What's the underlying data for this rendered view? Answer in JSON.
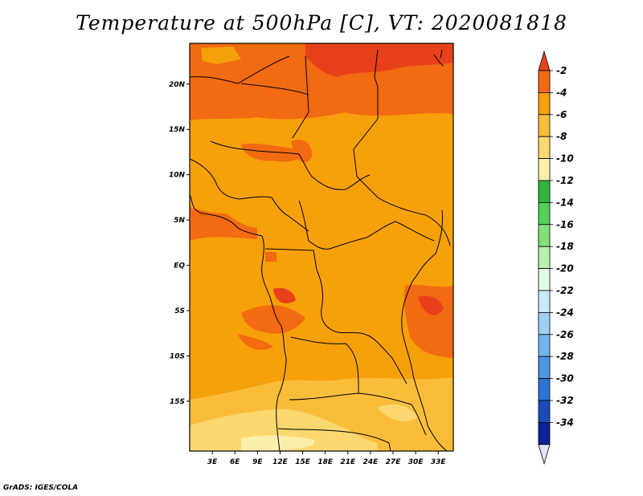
{
  "title": "Temperature at 500hPa [C], VT: 2020081818",
  "credit": "GrADS: IGES/COLA",
  "map": {
    "lat_labels": [
      "20N",
      "15N",
      "10N",
      "5N",
      "EQ",
      "5S",
      "10S",
      "15S"
    ],
    "lon_labels": [
      "3E",
      "6E",
      "9E",
      "12E",
      "15E",
      "18E",
      "21E",
      "24E",
      "27E",
      "30E",
      "33E"
    ],
    "lat_range": [
      -20.5,
      24.5
    ],
    "lon_range": [
      0,
      35
    ],
    "lat_values": [
      20,
      15,
      10,
      5,
      0,
      -5,
      -10,
      -15
    ],
    "lon_values": [
      3,
      6,
      9,
      12,
      15,
      18,
      21,
      24,
      27,
      30,
      33
    ]
  },
  "colorbar": {
    "labels": [
      "-2",
      "-4",
      "-6",
      "-8",
      "-10",
      "-12",
      "-14",
      "-16",
      "-18",
      "-20",
      "-22",
      "-24",
      "-26",
      "-28",
      "-30",
      "-32",
      "-34"
    ],
    "colors": [
      "#e8401a",
      "#f26a12",
      "#f6a00a",
      "#f9bd3a",
      "#fbd76f",
      "#fbeeab",
      "#2fb43c",
      "#55cf55",
      "#82e07b",
      "#b9f0ad",
      "#e2f9ea",
      "#c8e8f8",
      "#9dd0f3",
      "#72b4ec",
      "#4c96e2",
      "#2d72d4",
      "#1a4cb8",
      "#0c2296",
      "#e3e3fa"
    ]
  }
}
